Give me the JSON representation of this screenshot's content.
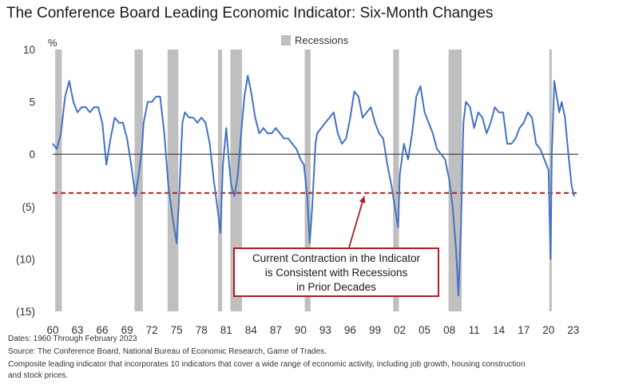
{
  "title": "The Conference Board Leading Economic Indicator: Six-Month Changes",
  "legend": {
    "label": "Recessions",
    "color": "#bfbfbf"
  },
  "callout": {
    "lines": [
      "Current Contraction in the Indicator",
      "is Consistent with Recessions",
      "in Prior Decades"
    ],
    "color": "#b01c24"
  },
  "footer": {
    "dates": "Dates: 1960 Through February 2023",
    "source": "Source: The Conference Board, National Bureau of Economic Research, Game of Trades.",
    "note_line1": "Composite leading indicator that incorporates 10 indicators that cover a wide range of economic activity, including job growth, housing construction",
    "note_line2": "and stock prices."
  },
  "chart_data": {
    "type": "line",
    "title": "The Conference Board Leading Economic Indicator: Six-Month Changes",
    "ylabel": "%",
    "ylim": [
      -15,
      10
    ],
    "xlim": [
      1960,
      2023.6
    ],
    "yticks": [
      10,
      5,
      0,
      -5,
      -10,
      -15
    ],
    "ytick_labels": [
      "10",
      "5",
      "0",
      "(5)",
      "(10)",
      "(15)"
    ],
    "xtick_labels": [
      "60",
      "63",
      "66",
      "69",
      "72",
      "75",
      "78",
      "81",
      "84",
      "87",
      "90",
      "93",
      "96",
      "99",
      "02",
      "05",
      "08",
      "11",
      "14",
      "17",
      "20",
      "23"
    ],
    "reference_lines": [
      {
        "y": 0,
        "style": "solid",
        "color": "#333333"
      },
      {
        "y": -3.7,
        "style": "dashed",
        "color": "#b01c24"
      }
    ],
    "recessions": [
      [
        1960.3,
        1961.1
      ],
      [
        1969.9,
        1970.9
      ],
      [
        1973.9,
        1975.2
      ],
      [
        1980.0,
        1980.5
      ],
      [
        1981.5,
        1982.9
      ],
      [
        1990.5,
        1991.2
      ],
      [
        2001.2,
        2001.9
      ],
      [
        2007.9,
        2009.5
      ],
      [
        2020.1,
        2020.3
      ]
    ],
    "series": [
      {
        "color": "#4472c4",
        "x": [
          1960.0,
          1960.5,
          1961.0,
          1961.5,
          1962.0,
          1962.5,
          1963.0,
          1963.5,
          1964.0,
          1964.5,
          1965.0,
          1965.5,
          1966.0,
          1966.5,
          1967.0,
          1967.5,
          1968.0,
          1968.5,
          1969.0,
          1969.5,
          1970.0,
          1970.4,
          1970.8,
          1971.0,
          1971.5,
          1972.0,
          1972.5,
          1973.0,
          1973.5,
          1974.0,
          1974.5,
          1975.0,
          1975.3,
          1975.7,
          1976.0,
          1976.5,
          1977.0,
          1977.5,
          1978.0,
          1978.5,
          1979.0,
          1979.5,
          1980.0,
          1980.3,
          1980.6,
          1981.0,
          1981.3,
          1981.6,
          1982.0,
          1982.4,
          1982.8,
          1983.2,
          1983.6,
          1984.0,
          1984.5,
          1985.0,
          1985.5,
          1986.0,
          1986.5,
          1987.0,
          1987.5,
          1988.0,
          1988.5,
          1989.0,
          1989.5,
          1990.0,
          1990.4,
          1990.8,
          1991.1,
          1991.4,
          1991.8,
          1992.0,
          1992.5,
          1993.0,
          1993.5,
          1994.0,
          1994.5,
          1995.0,
          1995.5,
          1996.0,
          1996.5,
          1997.0,
          1997.5,
          1998.0,
          1998.5,
          1999.0,
          1999.5,
          2000.0,
          2000.5,
          2001.0,
          2001.4,
          2001.8,
          2002.0,
          2002.5,
          2003.0,
          2003.5,
          2004.0,
          2004.5,
          2005.0,
          2005.5,
          2006.0,
          2006.5,
          2007.0,
          2007.5,
          2008.0,
          2008.4,
          2008.8,
          2009.1,
          2009.4,
          2009.7,
          2010.0,
          2010.5,
          2011.0,
          2011.5,
          2012.0,
          2012.5,
          2013.0,
          2013.5,
          2014.0,
          2014.5,
          2015.0,
          2015.5,
          2016.0,
          2016.5,
          2017.0,
          2017.5,
          2018.0,
          2018.5,
          2019.0,
          2019.5,
          2020.0,
          2020.25,
          2020.4,
          2020.7,
          2021.0,
          2021.3,
          2021.6,
          2022.0,
          2022.4,
          2022.8,
          2023.1
        ],
        "y": [
          1.0,
          0.5,
          2.0,
          5.5,
          7.0,
          5.0,
          4.0,
          4.5,
          4.5,
          4.0,
          4.5,
          4.5,
          3.0,
          -1.0,
          1.5,
          3.5,
          3.0,
          3.0,
          1.5,
          -1.0,
          -4.0,
          -2.0,
          0.5,
          3.0,
          5.0,
          5.0,
          5.5,
          5.5,
          2.0,
          -3.0,
          -6.0,
          -8.5,
          -4.0,
          3.0,
          4.0,
          3.5,
          3.5,
          3.0,
          3.5,
          3.0,
          1.0,
          -2.5,
          -5.5,
          -7.5,
          -1.0,
          2.5,
          -0.5,
          -3.0,
          -4.0,
          -2.0,
          2.0,
          5.5,
          7.5,
          6.0,
          3.5,
          2.0,
          2.5,
          2.0,
          2.0,
          2.5,
          2.0,
          1.5,
          1.5,
          1.0,
          0.5,
          -0.5,
          -1.0,
          -4.0,
          -8.5,
          -5.0,
          1.0,
          2.0,
          2.5,
          3.0,
          3.5,
          4.0,
          2.0,
          1.0,
          1.5,
          3.5,
          6.0,
          5.5,
          3.5,
          4.0,
          4.5,
          3.0,
          2.0,
          1.5,
          -1.0,
          -3.0,
          -5.0,
          -7.0,
          -2.0,
          1.0,
          -0.5,
          2.0,
          5.5,
          6.5,
          4.0,
          3.0,
          2.0,
          0.5,
          0.0,
          -0.5,
          -2.5,
          -5.0,
          -9.0,
          -13.5,
          -7.0,
          3.0,
          5.0,
          4.5,
          2.5,
          4.0,
          3.5,
          2.0,
          3.0,
          4.5,
          4.0,
          4.0,
          1.0,
          1.0,
          1.5,
          2.5,
          3.0,
          4.0,
          3.5,
          1.0,
          0.5,
          -0.5,
          -1.5,
          -10.0,
          0.0,
          7.0,
          5.5,
          4.0,
          5.0,
          3.5,
          0.0,
          -3.0,
          -4.0
        ]
      }
    ]
  }
}
